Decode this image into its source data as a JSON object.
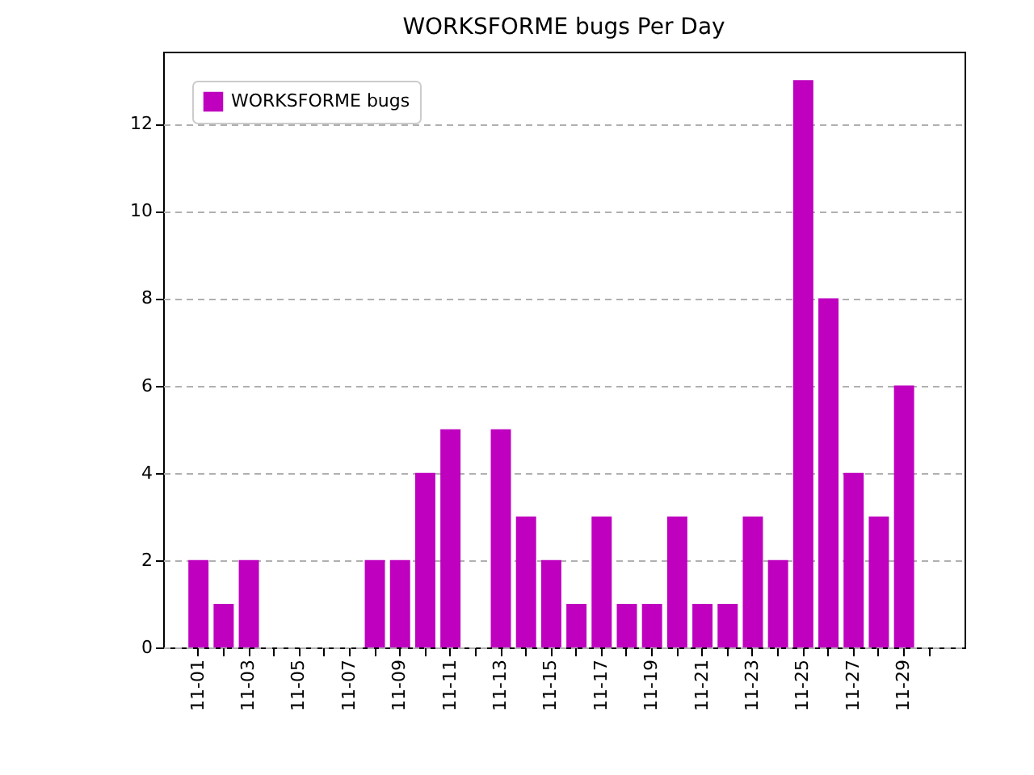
{
  "chart_data": {
    "type": "bar",
    "title": "WORKSFORME bugs Per Day",
    "categories": [
      "11-01",
      null,
      "11-03",
      null,
      "11-05",
      null,
      "11-07",
      null,
      "11-09",
      null,
      "11-11",
      null,
      "11-13",
      null,
      "11-15",
      null,
      "11-17",
      null,
      "11-19",
      null,
      "11-21",
      null,
      "11-23",
      null,
      "11-25",
      null,
      "11-27",
      null,
      "11-29",
      null
    ],
    "series": [
      {
        "name": "WORKSFORME bugs",
        "color": "#bf00bf",
        "values": [
          2,
          1,
          2,
          0,
          0,
          0,
          0,
          2,
          2,
          4,
          5,
          0,
          5,
          3,
          2,
          1,
          3,
          1,
          1,
          3,
          1,
          1,
          3,
          2,
          13,
          8,
          4,
          3,
          6,
          0
        ]
      }
    ],
    "ylim": [
      0,
      13.65
    ],
    "yticks": [
      0,
      2,
      4,
      6,
      8,
      10,
      12
    ],
    "grid": "y",
    "legend": "top left"
  }
}
